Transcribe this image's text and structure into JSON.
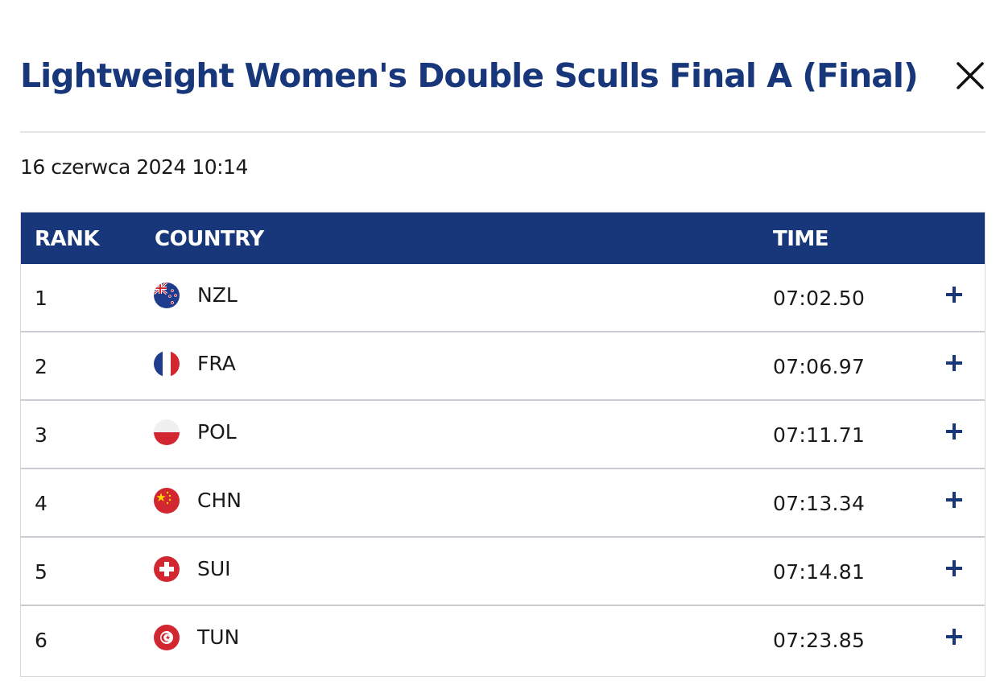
{
  "modal": {
    "title": "Lightweight Women's Double Sculls Final A (Final)",
    "close_icon": "close-icon",
    "datetime": "16 czerwca 2024 10:14"
  },
  "table": {
    "headers": {
      "rank": "RANK",
      "country": "COUNTRY",
      "time": "TIME"
    },
    "rows": [
      {
        "rank": "1",
        "country": "NZL",
        "flag": "flag-nzl-icon",
        "time": "07:02.50"
      },
      {
        "rank": "2",
        "country": "FRA",
        "flag": "flag-fra-icon",
        "time": "07:06.97"
      },
      {
        "rank": "3",
        "country": "POL",
        "flag": "flag-pol-icon",
        "time": "07:11.71"
      },
      {
        "rank": "4",
        "country": "CHN",
        "flag": "flag-chn-icon",
        "time": "07:13.34"
      },
      {
        "rank": "5",
        "country": "SUI",
        "flag": "flag-sui-icon",
        "time": "07:14.81"
      },
      {
        "rank": "6",
        "country": "TUN",
        "flag": "flag-tun-icon",
        "time": "07:23.85"
      }
    ],
    "expand_icon": "plus-icon"
  },
  "colors": {
    "brand_navy": "#17377a",
    "divider": "#e4e6ea",
    "row_border": "#c9cdd3",
    "text": "#1a1a1a"
  }
}
